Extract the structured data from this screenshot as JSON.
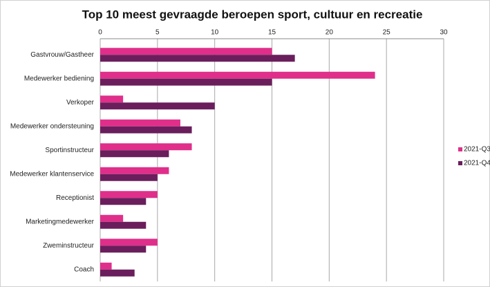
{
  "chart_data": {
    "type": "bar",
    "orientation": "horizontal",
    "title": "Top 10 meest gevraagde beroepen sport, cultuur en recreatie",
    "categories": [
      "Gastvrouw/Gastheer",
      "Medewerker bediening",
      "Verkoper",
      "Medewerker ondersteuning",
      "Sportinstructeur",
      "Medewerker klantenservice",
      "Receptionist",
      "Marketingmedewerker",
      "Zweminstructeur",
      "Coach"
    ],
    "series": [
      {
        "name": "2021-Q3",
        "color": "#df2f8a",
        "values": [
          15,
          24,
          2,
          7,
          8,
          6,
          5,
          2,
          5,
          1
        ]
      },
      {
        "name": "2021-Q4",
        "color": "#6a1e5c",
        "values": [
          17,
          15,
          10,
          8,
          6,
          5,
          4,
          4,
          4,
          3
        ]
      }
    ],
    "xlim": [
      0,
      30
    ],
    "xticks": [
      0,
      5,
      10,
      15,
      20,
      25,
      30
    ],
    "grid": true,
    "legend": "right"
  }
}
